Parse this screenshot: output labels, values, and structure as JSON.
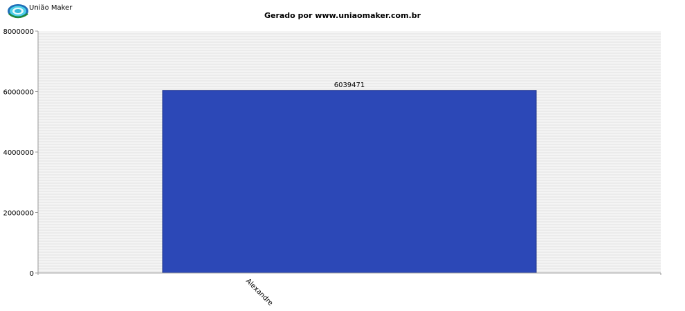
{
  "logo": {
    "text": "União Maker",
    "icon": "uniao-maker-logo-icon"
  },
  "chart_data": {
    "type": "bar",
    "title": "Gerado por www.uniaomaker.com.br",
    "xlabel": "",
    "ylabel": "",
    "categories": [
      "Alexandre"
    ],
    "values": [
      6039471
    ],
    "data_labels": [
      "6039471"
    ],
    "ylim": [
      0,
      8000000
    ],
    "yticks": [
      0,
      2000000,
      4000000,
      6000000,
      8000000
    ],
    "ytick_labels": [
      "0",
      "2000000",
      "4000000",
      "6000000",
      "8000000"
    ],
    "grid": true,
    "legend": "none",
    "colors": {
      "bar": "#2c48b7",
      "bar_border": "#1b2f86",
      "plot_bg": "#f4f4f4",
      "grid": "#e2e2e2",
      "axis": "#999999"
    }
  }
}
